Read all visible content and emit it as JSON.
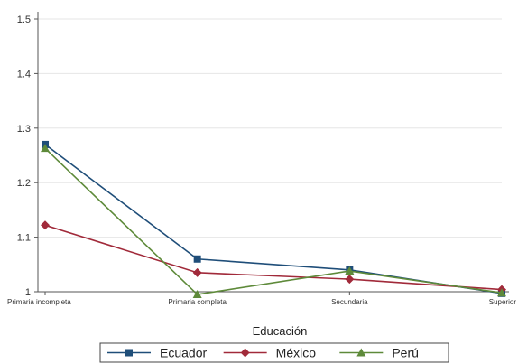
{
  "chart_data": {
    "type": "line",
    "title": "",
    "xlabel": "Educación",
    "ylabel": "",
    "categories": [
      "Primaria incompleta",
      "Primaria completa",
      "Secundaria",
      "Superior"
    ],
    "ylim": [
      1,
      1.5
    ],
    "yticks": [
      "1",
      "1.1",
      "1.2",
      "1.3",
      "1.4",
      "1.5"
    ],
    "grid": true,
    "legend_position": "bottom",
    "series": [
      {
        "name": "Ecuador",
        "values": [
          1.27,
          1.06,
          1.04,
          0.997
        ],
        "color": "#1f4e79",
        "marker": "square"
      },
      {
        "name": "México",
        "values": [
          1.122,
          1.035,
          1.023,
          1.004
        ],
        "color": "#a12a3a",
        "marker": "diamond"
      },
      {
        "name": "Perú",
        "values": [
          1.263,
          0.995,
          1.038,
          0.998
        ],
        "color": "#5e8a3a",
        "marker": "triangle"
      }
    ]
  }
}
